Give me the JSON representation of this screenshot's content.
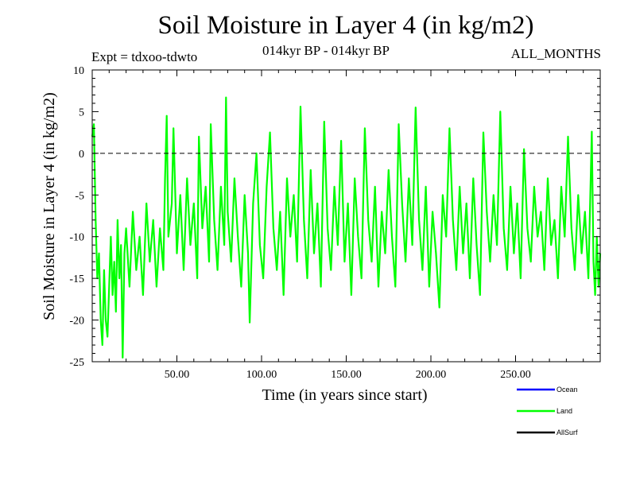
{
  "chart_data": {
    "type": "line",
    "title": "Soil Moisture in Layer 4 (in kg/m2)",
    "experiment_label": "Expt = tdxoo-tdwto",
    "period_label": "014kyr BP - 014kyr BP",
    "months_label": "ALL_MONTHS",
    "xlabel": "Time (in years since start)",
    "ylabel": "Soil Moisture in Layer 4 (in kg/m2)",
    "xlim": [
      0,
      300
    ],
    "ylim": [
      -25,
      10
    ],
    "x_ticks": [
      {
        "value": 50,
        "label": "50.00"
      },
      {
        "value": 100,
        "label": "100.00"
      },
      {
        "value": 150,
        "label": "150.00"
      },
      {
        "value": 200,
        "label": "200.00"
      },
      {
        "value": 250,
        "label": "250.00"
      }
    ],
    "y_ticks": [
      {
        "value": 10,
        "label": "10"
      },
      {
        "value": 5,
        "label": "5"
      },
      {
        "value": 0,
        "label": "0"
      },
      {
        "value": -5,
        "label": "-5"
      },
      {
        "value": -10,
        "label": "-10"
      },
      {
        "value": -15,
        "label": "-15"
      },
      {
        "value": -20,
        "label": "-20"
      },
      {
        "value": -25,
        "label": "-25"
      }
    ],
    "reference_line": 0,
    "series": [
      {
        "name": "Land",
        "color": "#00ff00",
        "note": "monthly time series, mean about -8, range about -25 to 7",
        "values": [
          [
            0,
            2
          ],
          [
            1,
            3.5
          ],
          [
            2,
            -8
          ],
          [
            3,
            -15
          ],
          [
            4,
            -12
          ],
          [
            5,
            -20
          ],
          [
            6,
            -23
          ],
          [
            7,
            -14
          ],
          [
            8,
            -20
          ],
          [
            9,
            -22
          ],
          [
            10,
            -16
          ],
          [
            11,
            -10
          ],
          [
            12,
            -17
          ],
          [
            13,
            -13
          ],
          [
            14,
            -19
          ],
          [
            15,
            -8
          ],
          [
            16,
            -15
          ],
          [
            17,
            -11
          ],
          [
            18,
            -24.5
          ],
          [
            19,
            -12
          ],
          [
            20,
            -9
          ],
          [
            22,
            -16
          ],
          [
            24,
            -7
          ],
          [
            26,
            -14
          ],
          [
            28,
            -10
          ],
          [
            30,
            -17
          ],
          [
            32,
            -6
          ],
          [
            34,
            -13
          ],
          [
            36,
            -8
          ],
          [
            38,
            -16
          ],
          [
            40,
            -9
          ],
          [
            42,
            -14
          ],
          [
            43,
            -3
          ],
          [
            44,
            4.5
          ],
          [
            45,
            -10
          ],
          [
            47,
            -6
          ],
          [
            48,
            3
          ],
          [
            50,
            -12
          ],
          [
            52,
            -5
          ],
          [
            54,
            -14
          ],
          [
            56,
            -3
          ],
          [
            58,
            -11
          ],
          [
            60,
            -6
          ],
          [
            62,
            -15
          ],
          [
            63,
            2
          ],
          [
            65,
            -9
          ],
          [
            67,
            -4
          ],
          [
            69,
            -13
          ],
          [
            70,
            3.5
          ],
          [
            72,
            -8
          ],
          [
            74,
            -14
          ],
          [
            76,
            -4
          ],
          [
            78,
            -11
          ],
          [
            79,
            6.7
          ],
          [
            80,
            -7
          ],
          [
            82,
            -13
          ],
          [
            84,
            -3
          ],
          [
            86,
            -10
          ],
          [
            88,
            -16
          ],
          [
            90,
            -5
          ],
          [
            92,
            -12
          ],
          [
            93,
            -20.3
          ],
          [
            95,
            -6
          ],
          [
            97,
            0
          ],
          [
            99,
            -11
          ],
          [
            101,
            -15
          ],
          [
            103,
            -4
          ],
          [
            105,
            2.5
          ],
          [
            107,
            -9
          ],
          [
            109,
            -14
          ],
          [
            111,
            -7
          ],
          [
            113,
            -17
          ],
          [
            115,
            -3
          ],
          [
            117,
            -10
          ],
          [
            119,
            -5
          ],
          [
            121,
            -13
          ],
          [
            123,
            5.6
          ],
          [
            125,
            -8
          ],
          [
            127,
            -15
          ],
          [
            129,
            -2
          ],
          [
            131,
            -12
          ],
          [
            133,
            -6
          ],
          [
            135,
            -16
          ],
          [
            137,
            3.8
          ],
          [
            139,
            -9
          ],
          [
            141,
            -14
          ],
          [
            143,
            -4
          ],
          [
            145,
            -11
          ],
          [
            147,
            1.5
          ],
          [
            149,
            -13
          ],
          [
            151,
            -6
          ],
          [
            153,
            -17
          ],
          [
            155,
            -3
          ],
          [
            157,
            -10
          ],
          [
            159,
            -15
          ],
          [
            161,
            3
          ],
          [
            163,
            -8
          ],
          [
            165,
            -13
          ],
          [
            167,
            -4
          ],
          [
            169,
            -16
          ],
          [
            171,
            -7
          ],
          [
            173,
            -12
          ],
          [
            175,
            -2
          ],
          [
            177,
            -10
          ],
          [
            179,
            -16
          ],
          [
            181,
            3.5
          ],
          [
            183,
            -6
          ],
          [
            185,
            -13
          ],
          [
            187,
            -3
          ],
          [
            189,
            -11
          ],
          [
            191,
            5.5
          ],
          [
            193,
            -8
          ],
          [
            195,
            -14
          ],
          [
            197,
            -4
          ],
          [
            199,
            -16
          ],
          [
            201,
            -7
          ],
          [
            203,
            -12
          ],
          [
            205,
            -18.5
          ],
          [
            207,
            -5
          ],
          [
            209,
            -10
          ],
          [
            211,
            3
          ],
          [
            213,
            -8
          ],
          [
            215,
            -14
          ],
          [
            217,
            -4
          ],
          [
            219,
            -12
          ],
          [
            221,
            -6
          ],
          [
            223,
            -15
          ],
          [
            225,
            -3
          ],
          [
            227,
            -11
          ],
          [
            229,
            -17
          ],
          [
            231,
            2.5
          ],
          [
            233,
            -7
          ],
          [
            235,
            -13
          ],
          [
            237,
            -5
          ],
          [
            239,
            -11
          ],
          [
            241,
            5
          ],
          [
            243,
            -9
          ],
          [
            245,
            -14
          ],
          [
            247,
            -4
          ],
          [
            249,
            -12
          ],
          [
            251,
            -6
          ],
          [
            253,
            -15
          ],
          [
            255,
            0.5
          ],
          [
            257,
            -9
          ],
          [
            259,
            -13
          ],
          [
            261,
            -4
          ],
          [
            263,
            -10
          ],
          [
            265,
            -7
          ],
          [
            267,
            -14
          ],
          [
            269,
            -3
          ],
          [
            271,
            -11
          ],
          [
            273,
            -8
          ],
          [
            275,
            -15
          ],
          [
            277,
            -4
          ],
          [
            279,
            -10
          ],
          [
            281,
            2
          ],
          [
            283,
            -9
          ],
          [
            285,
            -14
          ],
          [
            287,
            -5
          ],
          [
            289,
            -12
          ],
          [
            291,
            -7
          ],
          [
            293,
            -15
          ],
          [
            295,
            2.6
          ],
          [
            296,
            -13
          ],
          [
            297,
            -17
          ],
          [
            298,
            -10
          ],
          [
            299,
            -16
          ],
          [
            300,
            -12
          ]
        ]
      }
    ],
    "legend": [
      {
        "name": "Ocean",
        "color": "#0000ff"
      },
      {
        "name": "Land",
        "color": "#00ff00"
      },
      {
        "name": "AllSurf",
        "color": "#000000"
      }
    ]
  }
}
